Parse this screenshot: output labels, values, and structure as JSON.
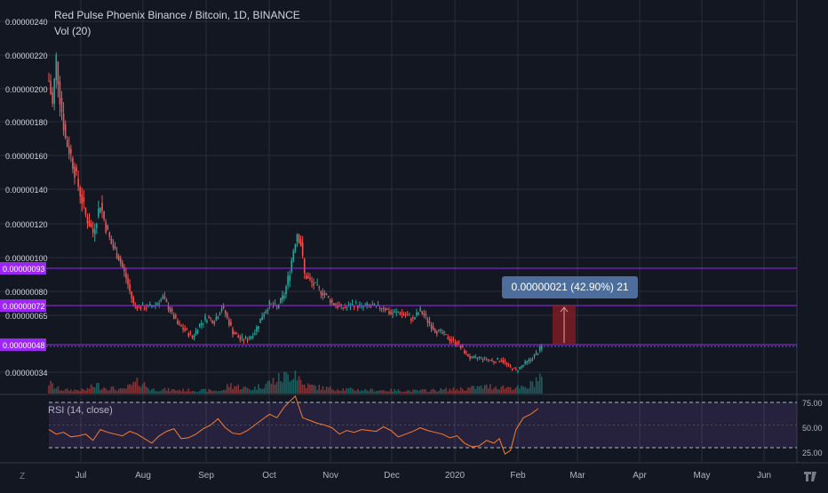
{
  "header": {
    "title": "Red Pulse Phoenix Binance / Bitcoin, 1D, BINANCE",
    "volume_label": "Vol (20)"
  },
  "rsi": {
    "label": "RSI (14, close)",
    "levels": [
      "75.00",
      "50.00",
      "25.00"
    ]
  },
  "measure": {
    "label": "0.00000021 (42.90%) 21"
  },
  "footer": {
    "timezone_button": "Z"
  },
  "colors": {
    "background": "#131722",
    "up": "#26a69a",
    "down": "#ef5350",
    "rsi_line": "#f57c2e",
    "rsi_band": "#7e57c2",
    "level_line": "#9c27f5",
    "measure_box": "#4d6e9c"
  },
  "chart_data": {
    "type": "candlestick",
    "title": "Red Pulse Phoenix Binance / Bitcoin, 1D, BINANCE",
    "y_ticks": [
      "0.00000240",
      "0.00000220",
      "0.00000200",
      "0.00000180",
      "0.00000160",
      "0.00000140",
      "0.00000120",
      "0.00000100",
      "0.00000080",
      "0.00000065",
      "0.00000034"
    ],
    "x_ticks": [
      "Jul",
      "Aug",
      "Sep",
      "Oct",
      "Nov",
      "Dec",
      "2020",
      "Feb",
      "Mar",
      "Apr",
      "May",
      "Jun"
    ],
    "highlighted_levels": [
      {
        "label": "0.00000093",
        "value": 9.3e-07
      },
      {
        "label": "0.00000072",
        "value": 7.2e-07
      },
      {
        "label": "0.00000048",
        "value": 4.8e-07
      }
    ],
    "price_path": [
      [
        0,
        2.05
      ],
      [
        2,
        1.9
      ],
      [
        4,
        2.18
      ],
      [
        6,
        1.95
      ],
      [
        9,
        1.7
      ],
      [
        12,
        1.6
      ],
      [
        16,
        1.42
      ],
      [
        20,
        1.25
      ],
      [
        24,
        1.15
      ],
      [
        28,
        1.32
      ],
      [
        31,
        1.18
      ],
      [
        34,
        1.08
      ],
      [
        38,
        1.0
      ],
      [
        42,
        0.88
      ],
      [
        46,
        0.72
      ],
      [
        50,
        0.7
      ],
      [
        54,
        0.7
      ],
      [
        58,
        0.72
      ],
      [
        62,
        0.76
      ],
      [
        66,
        0.68
      ],
      [
        70,
        0.6
      ],
      [
        74,
        0.57
      ],
      [
        78,
        0.53
      ],
      [
        82,
        0.6
      ],
      [
        86,
        0.64
      ],
      [
        90,
        0.62
      ],
      [
        94,
        0.7
      ],
      [
        96,
        0.66
      ],
      [
        100,
        0.56
      ],
      [
        104,
        0.52
      ],
      [
        108,
        0.52
      ],
      [
        112,
        0.56
      ],
      [
        116,
        0.65
      ],
      [
        120,
        0.72
      ],
      [
        124,
        0.7
      ],
      [
        128,
        0.78
      ],
      [
        131,
        0.92
      ],
      [
        133,
        1.05
      ],
      [
        135,
        1.15
      ],
      [
        137,
        1.08
      ],
      [
        139,
        0.9
      ],
      [
        142,
        0.86
      ],
      [
        146,
        0.82
      ],
      [
        150,
        0.78
      ],
      [
        154,
        0.73
      ],
      [
        158,
        0.7
      ],
      [
        162,
        0.7
      ],
      [
        166,
        0.72
      ],
      [
        170,
        0.7
      ],
      [
        174,
        0.71
      ],
      [
        178,
        0.7
      ],
      [
        182,
        0.7
      ],
      [
        186,
        0.66
      ],
      [
        190,
        0.67
      ],
      [
        194,
        0.65
      ],
      [
        198,
        0.63
      ],
      [
        202,
        0.68
      ],
      [
        206,
        0.62
      ],
      [
        210,
        0.57
      ],
      [
        214,
        0.55
      ],
      [
        218,
        0.52
      ],
      [
        222,
        0.5
      ],
      [
        226,
        0.45
      ],
      [
        230,
        0.41
      ],
      [
        234,
        0.42
      ],
      [
        238,
        0.41
      ],
      [
        242,
        0.4
      ],
      [
        246,
        0.41
      ],
      [
        250,
        0.37
      ],
      [
        254,
        0.35
      ],
      [
        258,
        0.38
      ],
      [
        262,
        0.41
      ],
      [
        266,
        0.45
      ],
      [
        268,
        0.48
      ]
    ],
    "volume_path": [
      [
        0,
        0.3
      ],
      [
        4,
        0.15
      ],
      [
        8,
        0.1
      ],
      [
        20,
        0.1
      ],
      [
        26,
        0.25
      ],
      [
        28,
        0.2
      ],
      [
        40,
        0.1
      ],
      [
        50,
        0.35
      ],
      [
        55,
        0.12
      ],
      [
        70,
        0.1
      ],
      [
        95,
        0.08
      ],
      [
        98,
        0.25
      ],
      [
        110,
        0.12
      ],
      [
        130,
        0.5
      ],
      [
        134,
        0.65
      ],
      [
        138,
        0.25
      ],
      [
        150,
        0.15
      ],
      [
        170,
        0.1
      ],
      [
        200,
        0.08
      ],
      [
        222,
        0.12
      ],
      [
        240,
        0.2
      ],
      [
        260,
        0.15
      ],
      [
        266,
        0.45
      ],
      [
        268,
        0.45
      ]
    ],
    "rsi_path": [
      [
        0,
        45
      ],
      [
        4,
        40
      ],
      [
        8,
        42
      ],
      [
        12,
        37
      ],
      [
        16,
        38
      ],
      [
        20,
        40
      ],
      [
        24,
        33
      ],
      [
        28,
        45
      ],
      [
        32,
        42
      ],
      [
        36,
        40
      ],
      [
        40,
        38
      ],
      [
        44,
        43
      ],
      [
        48,
        40
      ],
      [
        52,
        35
      ],
      [
        56,
        30
      ],
      [
        60,
        38
      ],
      [
        64,
        43
      ],
      [
        68,
        46
      ],
      [
        72,
        35
      ],
      [
        76,
        36
      ],
      [
        80,
        40
      ],
      [
        84,
        46
      ],
      [
        88,
        50
      ],
      [
        92,
        57
      ],
      [
        96,
        47
      ],
      [
        100,
        41
      ],
      [
        104,
        40
      ],
      [
        108,
        44
      ],
      [
        112,
        50
      ],
      [
        116,
        56
      ],
      [
        120,
        62
      ],
      [
        124,
        58
      ],
      [
        128,
        70
      ],
      [
        132,
        78
      ],
      [
        134,
        82
      ],
      [
        136,
        70
      ],
      [
        138,
        58
      ],
      [
        142,
        55
      ],
      [
        146,
        52
      ],
      [
        150,
        50
      ],
      [
        154,
        47
      ],
      [
        158,
        40
      ],
      [
        162,
        44
      ],
      [
        166,
        42
      ],
      [
        170,
        45
      ],
      [
        174,
        44
      ],
      [
        178,
        43
      ],
      [
        182,
        48
      ],
      [
        186,
        44
      ],
      [
        190,
        37
      ],
      [
        194,
        40
      ],
      [
        198,
        43
      ],
      [
        202,
        47
      ],
      [
        206,
        44
      ],
      [
        210,
        42
      ],
      [
        214,
        40
      ],
      [
        218,
        36
      ],
      [
        222,
        38
      ],
      [
        226,
        30
      ],
      [
        230,
        26
      ],
      [
        234,
        27
      ],
      [
        238,
        33
      ],
      [
        242,
        30
      ],
      [
        245,
        35
      ],
      [
        248,
        18
      ],
      [
        251,
        22
      ],
      [
        254,
        45
      ],
      [
        258,
        58
      ],
      [
        262,
        62
      ],
      [
        266,
        68
      ]
    ],
    "measure_label": "0.00000021 (42.90%) 21"
  }
}
